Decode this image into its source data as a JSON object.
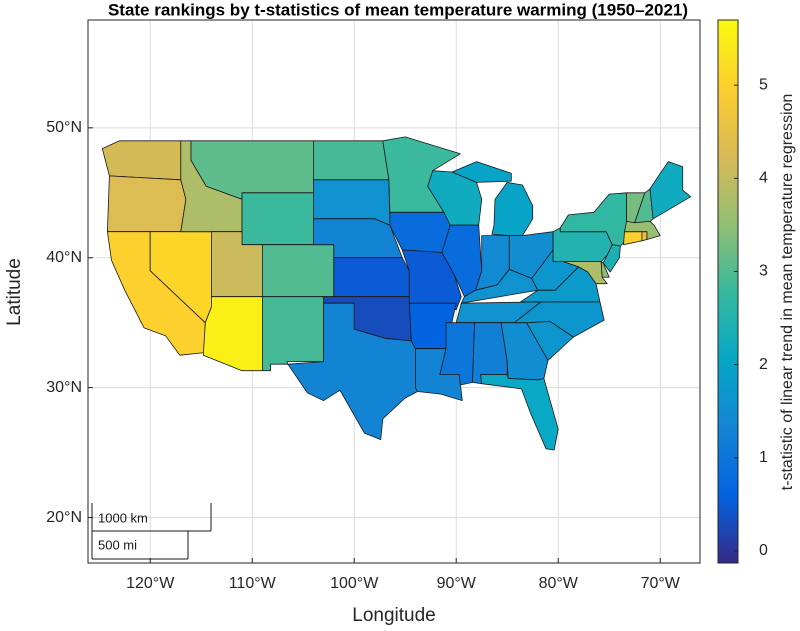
{
  "chart_data": {
    "type": "choropleth",
    "title": "State rankings by t-statistics of mean temperature warming (1950–2021)",
    "xlabel": "Longitude",
    "ylabel": "Latitude",
    "xlim": [
      -126.1,
      -66.1
    ],
    "ylim": [
      16.5,
      58.3
    ],
    "xticks": [
      {
        "value": -120,
        "label": "120°W"
      },
      {
        "value": -110,
        "label": "110°W"
      },
      {
        "value": -100,
        "label": "100°W"
      },
      {
        "value": -90,
        "label": "90°W"
      },
      {
        "value": -80,
        "label": "80°W"
      },
      {
        "value": -70,
        "label": "70°W"
      }
    ],
    "yticks": [
      {
        "value": 20,
        "label": "20°N"
      },
      {
        "value": 30,
        "label": "30°N"
      },
      {
        "value": 40,
        "label": "40°N"
      },
      {
        "value": 50,
        "label": "50°N"
      }
    ],
    "grid": true,
    "values": [
      4.2,
      4.3,
      5.0,
      5.1,
      3.8,
      3.1,
      2.8,
      4.1,
      5.5,
      3.0,
      2.9,
      2.9,
      1.6,
      1.3,
      0.5,
      0.3,
      1.3,
      2.8,
      0.8,
      0.5,
      0.6,
      1.3,
      2.2,
      0.8,
      2.0,
      1.4,
      1.5,
      1.6,
      1.6,
      1.0,
      1.2,
      1.5,
      2.1,
      1.7,
      1.7,
      1.8,
      1.7,
      2.5,
      2.7,
      2.4,
      3.5,
      3.8,
      5.0,
      4.5,
      3.6,
      3.3,
      3.0,
      2.2
    ],
    "colorbar": {
      "label": "t-statistic of linear trend in mean temperature regression",
      "lim": [
        -0.13,
        5.7
      ],
      "ticks": [
        0,
        1,
        2,
        3,
        4,
        5
      ]
    },
    "colormap": [
      "#352a87",
      "#0363e1",
      "#1485d4",
      "#06a7c6",
      "#38b99e",
      "#92bf73",
      "#d9ba56",
      "#fcce2e",
      "#f9fb0e"
    ],
    "scale_bar": [
      "1000 km",
      "500 mi"
    ]
  }
}
